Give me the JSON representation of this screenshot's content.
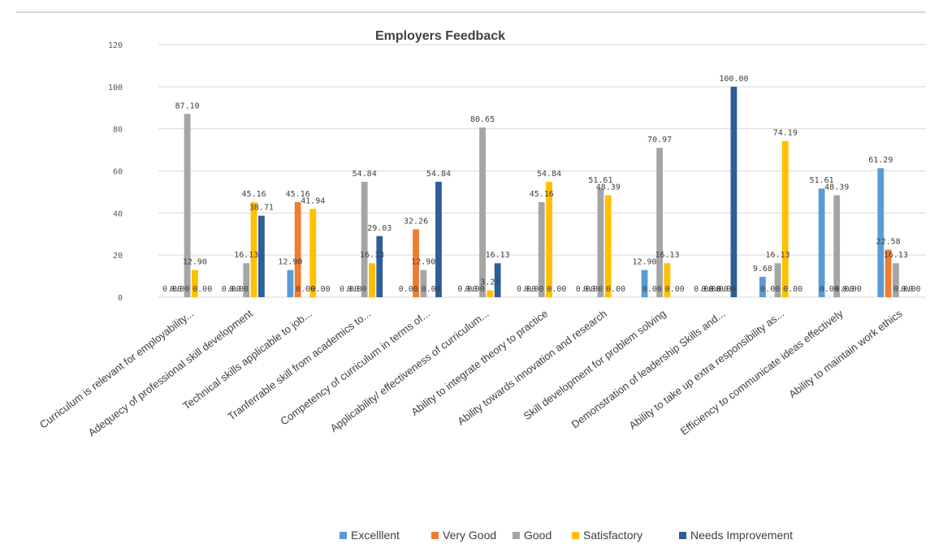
{
  "chart_data": {
    "type": "bar",
    "title": "Employers Feedback",
    "xlabel": "",
    "ylabel": "",
    "ylim": [
      0,
      120
    ],
    "yticks": [
      0,
      20,
      40,
      60,
      80,
      100,
      120
    ],
    "grid": true,
    "legend_position": "bottom",
    "categories": [
      "Curriculum is relevant for employability...",
      "Adequecy of professional skill development",
      "Technical skills applicable to job...",
      "Tranferrable skill from academics to...",
      "Competency of curriculum in terms of...",
      "Applicability/ effectiveness of curriculum...",
      "Ability to integrate theory to practice",
      "Ability towards innovation and research",
      "Skill development for problem solving",
      "Demonstration of leadership Skills and...",
      "Ability to take up extra responsibility as...",
      "Efficiency to communicate ideas effectively",
      "Ability to maintain work ethics"
    ],
    "series": [
      {
        "name": "Excelllent",
        "color": "#5b9bd5",
        "values": [
          0.0,
          0.0,
          12.9,
          0.0,
          0.0,
          0.0,
          0.0,
          0.0,
          12.9,
          0.0,
          9.68,
          51.61,
          61.29
        ],
        "labels": [
          "0.00",
          "0.00",
          "12.90",
          "0.00",
          "0.00",
          "0.00",
          "0.00",
          "0.00",
          "12.90",
          "0.00",
          "9.68",
          "51.61",
          "61.29"
        ]
      },
      {
        "name": "Very Good",
        "color": "#ed7d31",
        "values": [
          0.0,
          0.0,
          45.16,
          0.0,
          32.26,
          0.0,
          0.0,
          0.0,
          0.0,
          0.0,
          0.0,
          0.0,
          22.58
        ],
        "labels": [
          "0.00",
          "0.00",
          "45.16",
          "0.00",
          "32.26",
          "0.00",
          "0.00",
          "0.00",
          "0.00",
          "0.00",
          "0.00",
          "0.00",
          "22.58"
        ]
      },
      {
        "name": "Good",
        "color": "#a5a5a5",
        "values": [
          87.1,
          16.13,
          0.0,
          54.84,
          12.9,
          80.65,
          45.16,
          51.61,
          70.97,
          0.0,
          16.13,
          48.39,
          16.13
        ],
        "labels": [
          "87.10",
          "16.13",
          "0.00",
          "54.84",
          "12.90",
          "80.65",
          "45.16",
          "51.61",
          "70.97",
          "0.00",
          "16.13",
          "48.39",
          "16.13"
        ]
      },
      {
        "name": "Satisfactory",
        "color": "#ffc000",
        "values": [
          12.9,
          45.16,
          41.94,
          16.13,
          0.0,
          3.23,
          54.84,
          48.39,
          16.13,
          0.0,
          74.19,
          0.0,
          0.0
        ],
        "labels": [
          "12.90",
          "45.16",
          "41.94",
          "16.13",
          "0.00",
          "3.23",
          "54.84",
          "48.39",
          "16.13",
          "0.00",
          "74.19",
          "0.00",
          "0.00"
        ]
      },
      {
        "name": "Needs Improvement",
        "color": "#2e5e99",
        "values": [
          0.0,
          38.71,
          0.0,
          29.03,
          54.84,
          16.13,
          0.0,
          0.0,
          0.0,
          100.0,
          0.0,
          0.0,
          0.0
        ],
        "labels": [
          "0.00",
          "38.71",
          "0.00",
          "29.03",
          "54.84",
          "16.13",
          "0.00",
          "0.00",
          "0.00",
          "100.00",
          "0.00",
          "0.00",
          "0.00"
        ]
      }
    ]
  }
}
